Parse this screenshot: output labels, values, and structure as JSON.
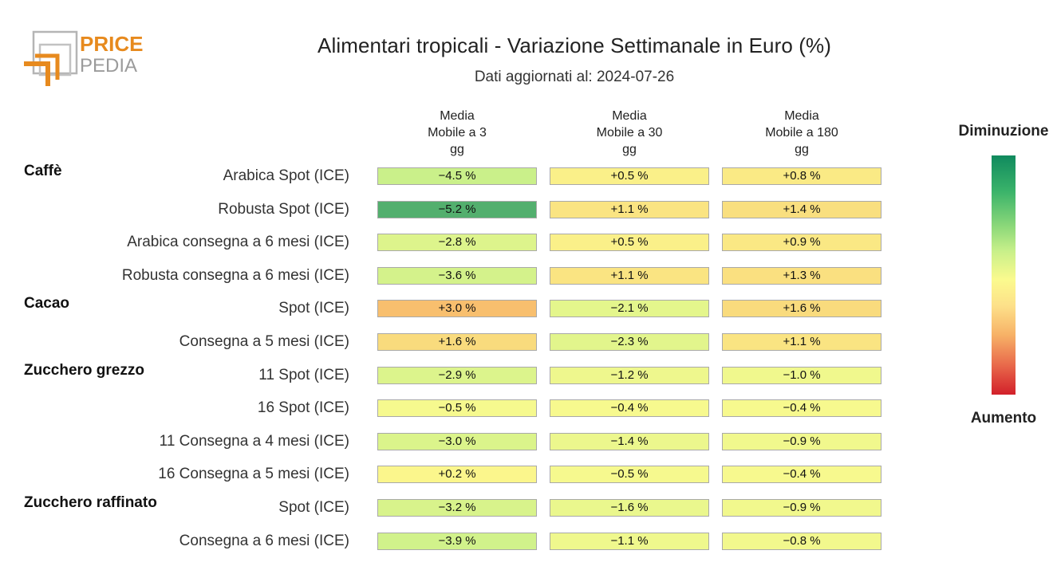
{
  "logo": {
    "line1": "PRICE",
    "line2": "PEDIA",
    "accent": "#e78a1e",
    "gray": "#9b9b9b"
  },
  "chart_data": {
    "type": "heatmap",
    "title": "Alimentari tropicali - Variazione Settimanale in Euro (%)",
    "subtitle": "Dati aggiornati al: 2024-07-26",
    "columns": [
      [
        "Media",
        "Mobile a 3",
        "gg"
      ],
      [
        "Media",
        "Mobile a 30",
        "gg"
      ],
      [
        "Media",
        "Mobile a 180",
        "gg"
      ]
    ],
    "groups": [
      {
        "name": "Caffè",
        "rows": [
          {
            "label": "Arabica Spot (ICE)",
            "values": [
              -4.5,
              0.5,
              0.8
            ],
            "texts": [
              "−4.5 %",
              "+0.5 %",
              "+0.8 %"
            ]
          },
          {
            "label": "Robusta Spot (ICE)",
            "values": [
              -5.2,
              1.1,
              1.4
            ],
            "texts": [
              "−5.2 %",
              "+1.1 %",
              "+1.4 %"
            ]
          },
          {
            "label": "Arabica consegna a 6 mesi (ICE)",
            "values": [
              -2.8,
              0.5,
              0.9
            ],
            "texts": [
              "−2.8 %",
              "+0.5 %",
              "+0.9 %"
            ]
          },
          {
            "label": "Robusta consegna a 6 mesi (ICE)",
            "values": [
              -3.6,
              1.1,
              1.3
            ],
            "texts": [
              "−3.6 %",
              "+1.1 %",
              "+1.3 %"
            ]
          }
        ]
      },
      {
        "name": "Cacao",
        "rows": [
          {
            "label": "Spot (ICE)",
            "values": [
              3.0,
              -2.1,
              1.6
            ],
            "texts": [
              "+3.0 %",
              "−2.1 %",
              "+1.6 %"
            ]
          },
          {
            "label": "Consegna a 5 mesi (ICE)",
            "values": [
              1.6,
              -2.3,
              1.1
            ],
            "texts": [
              "+1.6 %",
              "−2.3 %",
              "+1.1 %"
            ]
          }
        ]
      },
      {
        "name": "Zucchero grezzo",
        "rows": [
          {
            "label": "11 Spot (ICE)",
            "values": [
              -2.9,
              -1.2,
              -1.0
            ],
            "texts": [
              "−2.9 %",
              "−1.2 %",
              "−1.0 %"
            ]
          },
          {
            "label": "16 Spot (ICE)",
            "values": [
              -0.5,
              -0.4,
              -0.4
            ],
            "texts": [
              "−0.5 %",
              "−0.4 %",
              "−0.4 %"
            ]
          },
          {
            "label": "11 Consegna a 4 mesi (ICE)",
            "values": [
              -3.0,
              -1.4,
              -0.9
            ],
            "texts": [
              "−3.0 %",
              "−1.4 %",
              "−0.9 %"
            ]
          },
          {
            "label": "16 Consegna a 5 mesi (ICE)",
            "values": [
              0.2,
              -0.5,
              -0.4
            ],
            "texts": [
              "+0.2 %",
              "−0.5 %",
              "−0.4 %"
            ]
          }
        ]
      },
      {
        "name": "Zucchero raffinato",
        "rows": [
          {
            "label": "Spot (ICE)",
            "values": [
              -3.2,
              -1.6,
              -0.9
            ],
            "texts": [
              "−3.2 %",
              "−1.6 %",
              "−0.9 %"
            ]
          },
          {
            "label": "Consegna a 6 mesi (ICE)",
            "values": [
              -3.9,
              -1.1,
              -0.8
            ],
            "texts": [
              "−3.9 %",
              "−1.1 %",
              "−0.8 %"
            ]
          }
        ]
      }
    ],
    "legend": {
      "top": "Diminuzione",
      "bottom": "Aumento"
    },
    "colors": {
      "strong_decrease": "#108a5e",
      "decrease": "#c8f08a",
      "neutral": "#fbfa8e",
      "increase": "#f7b267",
      "strong_increase": "#d2202a"
    }
  }
}
